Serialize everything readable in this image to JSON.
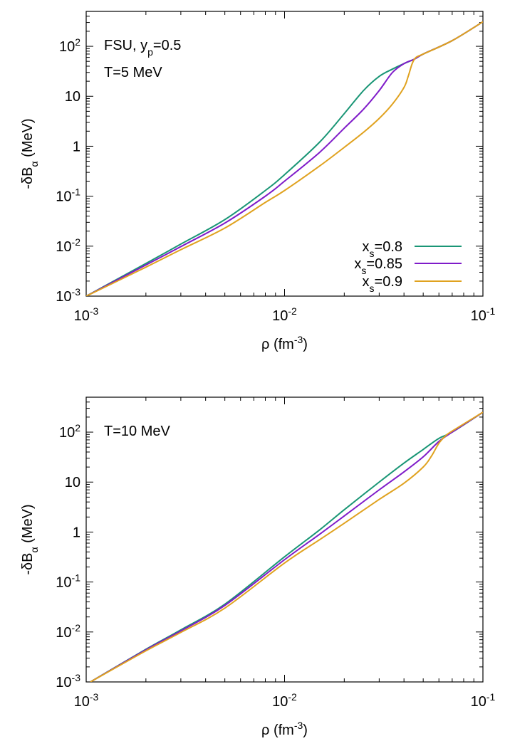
{
  "chart_data": [
    {
      "type": "line",
      "scale": "log-log",
      "xlabel": {
        "base": "ρ (fm",
        "sup": "-3",
        "tail": ")"
      },
      "ylabel": {
        "base": "-δB",
        "sub": "α",
        "tail": " (MeV)"
      },
      "xlim": [
        0.001,
        0.1
      ],
      "ylim": [
        0.001,
        500
      ],
      "x_ticks": [
        {
          "value": 0.001,
          "base": "10",
          "sup": "-3"
        },
        {
          "value": 0.01,
          "base": "10",
          "sup": "-2"
        },
        {
          "value": 0.1,
          "base": "10",
          "sup": "-1"
        }
      ],
      "y_ticks": [
        {
          "value": 0.001,
          "base": "10",
          "sup": "-3"
        },
        {
          "value": 0.01,
          "base": "10",
          "sup": "-2"
        },
        {
          "value": 0.1,
          "base": "10",
          "sup": "-1"
        },
        {
          "value": 1,
          "base": "1",
          "sup": ""
        },
        {
          "value": 10,
          "base": "10",
          "sup": ""
        },
        {
          "value": 100,
          "base": "10",
          "sup": "2"
        }
      ],
      "annotations": [
        {
          "base": "FSU, y",
          "sub": "p",
          "tail": "=0.5"
        },
        {
          "base": "T=5 MeV",
          "sub": "",
          "tail": ""
        }
      ],
      "legend": {
        "position": "bottom-right"
      },
      "series": [
        {
          "name": "x_s=0.8",
          "label_base": "x",
          "label_sub": "s",
          "label_tail": "=0.8",
          "color": "#1a9676",
          "x": [
            0.001,
            0.002,
            0.003,
            0.005,
            0.008,
            0.01,
            0.015,
            0.02,
            0.025,
            0.03,
            0.035,
            0.04,
            0.045,
            0.05,
            0.07,
            0.1
          ],
          "y": [
            0.001,
            0.0045,
            0.011,
            0.034,
            0.13,
            0.27,
            1.2,
            4.5,
            13,
            25,
            35,
            45,
            55,
            70,
            130,
            310
          ]
        },
        {
          "name": "x_s=0.85",
          "label_base": "x",
          "label_sub": "s",
          "label_tail": "=0.85",
          "color": "#7f1bc9",
          "x": [
            0.001,
            0.002,
            0.003,
            0.005,
            0.008,
            0.01,
            0.015,
            0.02,
            0.025,
            0.03,
            0.035,
            0.04,
            0.045,
            0.05,
            0.07,
            0.1
          ],
          "y": [
            0.001,
            0.0042,
            0.0098,
            0.029,
            0.1,
            0.2,
            0.75,
            2.3,
            5.5,
            13,
            30,
            45,
            55,
            70,
            130,
            310
          ]
        },
        {
          "name": "x_s=0.9",
          "label_base": "x",
          "label_sub": "s",
          "label_tail": "=0.9",
          "color": "#e0a21f",
          "x": [
            0.001,
            0.002,
            0.003,
            0.005,
            0.008,
            0.01,
            0.015,
            0.02,
            0.025,
            0.03,
            0.035,
            0.04,
            0.042,
            0.044,
            0.046,
            0.05,
            0.07,
            0.1
          ],
          "y": [
            0.001,
            0.0038,
            0.0085,
            0.023,
            0.075,
            0.13,
            0.4,
            0.95,
            1.9,
            3.6,
            7,
            15,
            25,
            45,
            60,
            70,
            130,
            310
          ]
        }
      ]
    },
    {
      "type": "line",
      "scale": "log-log",
      "xlabel": {
        "base": "ρ (fm",
        "sup": "-3",
        "tail": ")"
      },
      "ylabel": {
        "base": "-δB",
        "sub": "α",
        "tail": " (MeV)"
      },
      "xlim": [
        0.001,
        0.1
      ],
      "ylim": [
        0.001,
        500
      ],
      "x_ticks": [
        {
          "value": 0.001,
          "base": "10",
          "sup": "-3"
        },
        {
          "value": 0.01,
          "base": "10",
          "sup": "-2"
        },
        {
          "value": 0.1,
          "base": "10",
          "sup": "-1"
        }
      ],
      "y_ticks": [
        {
          "value": 0.001,
          "base": "10",
          "sup": "-3"
        },
        {
          "value": 0.01,
          "base": "10",
          "sup": "-2"
        },
        {
          "value": 0.1,
          "base": "10",
          "sup": "-1"
        },
        {
          "value": 1,
          "base": "1",
          "sup": ""
        },
        {
          "value": 10,
          "base": "10",
          "sup": ""
        },
        {
          "value": 100,
          "base": "10",
          "sup": "2"
        }
      ],
      "annotations": [
        {
          "base": "T=10 MeV",
          "sub": "",
          "tail": ""
        }
      ],
      "series": [
        {
          "name": "x_s=0.8",
          "color": "#1a9676",
          "x": [
            0.00105,
            0.002,
            0.003,
            0.005,
            0.01,
            0.015,
            0.02,
            0.03,
            0.04,
            0.05,
            0.06,
            0.07,
            0.1
          ],
          "y": [
            0.001,
            0.0045,
            0.011,
            0.036,
            0.32,
            1.1,
            2.8,
            10,
            24,
            45,
            75,
            100,
            250
          ]
        },
        {
          "name": "x_s=0.85",
          "color": "#7f1bc9",
          "x": [
            0.00105,
            0.002,
            0.003,
            0.005,
            0.01,
            0.015,
            0.02,
            0.03,
            0.04,
            0.05,
            0.06,
            0.07,
            0.1
          ],
          "y": [
            0.001,
            0.0044,
            0.0105,
            0.034,
            0.28,
            0.9,
            2.1,
            7,
            16,
            32,
            65,
            100,
            250
          ]
        },
        {
          "name": "x_s=0.9",
          "color": "#e0a21f",
          "x": [
            0.00105,
            0.002,
            0.003,
            0.005,
            0.01,
            0.015,
            0.02,
            0.03,
            0.04,
            0.05,
            0.055,
            0.06,
            0.065,
            0.07,
            0.1
          ],
          "y": [
            0.001,
            0.0042,
            0.0098,
            0.03,
            0.24,
            0.7,
            1.5,
            4.5,
            9.5,
            20,
            33,
            60,
            85,
            105,
            250
          ]
        }
      ]
    }
  ]
}
